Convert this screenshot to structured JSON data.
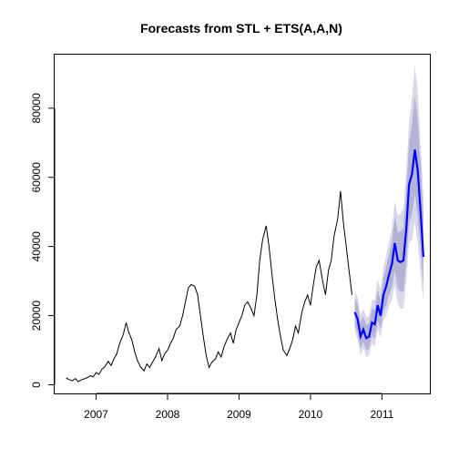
{
  "chart_data": {
    "type": "line",
    "title": "Forecasts from STL +  ETS(A,A,N)",
    "xlabel": "",
    "ylabel": "",
    "xlim": [
      2006.42,
      2011.67
    ],
    "ylim": [
      -2500,
      95500
    ],
    "x_ticks": [
      2007,
      2008,
      2009,
      2010,
      2011
    ],
    "x_tick_labels": [
      "2007",
      "2008",
      "2009",
      "2010",
      "2011"
    ],
    "y_ticks": [
      0,
      20000,
      40000,
      60000,
      80000
    ],
    "y_tick_labels": [
      "0",
      "20000",
      "40000",
      "60000",
      "80000"
    ],
    "grid": false,
    "legend": "none",
    "colors": {
      "history": "#000000",
      "forecast": "#0000ff",
      "band_95": "#d9d9ea",
      "band_80": "#b3b3d6"
    },
    "series": [
      {
        "role": "history",
        "x": [
          2006.58,
          2006.62,
          2006.67,
          2006.71,
          2006.75,
          2006.79,
          2006.83,
          2006.88,
          2006.92,
          2006.96,
          2007.0,
          2007.04,
          2007.08,
          2007.12,
          2007.17,
          2007.21,
          2007.25,
          2007.29,
          2007.33,
          2007.38,
          2007.42,
          2007.46,
          2007.5,
          2007.54,
          2007.58,
          2007.62,
          2007.67,
          2007.71,
          2007.75,
          2007.79,
          2007.83,
          2007.88,
          2007.92,
          2007.96,
          2008.0,
          2008.04,
          2008.08,
          2008.12,
          2008.17,
          2008.21,
          2008.25,
          2008.29,
          2008.33,
          2008.38,
          2008.42,
          2008.46,
          2008.5,
          2008.54,
          2008.58,
          2008.62,
          2008.67,
          2008.71,
          2008.75,
          2008.79,
          2008.83,
          2008.88,
          2008.92,
          2008.96,
          2009.0,
          2009.04,
          2009.08,
          2009.12,
          2009.17,
          2009.21,
          2009.25,
          2009.29,
          2009.33,
          2009.38,
          2009.42,
          2009.46,
          2009.5,
          2009.54,
          2009.58,
          2009.62,
          2009.67,
          2009.71,
          2009.75,
          2009.79,
          2009.83,
          2009.88,
          2009.92,
          2009.96,
          2010.0,
          2010.04,
          2010.08,
          2010.12,
          2010.17,
          2010.21,
          2010.25,
          2010.29,
          2010.33,
          2010.38,
          2010.42,
          2010.46,
          2010.5,
          2010.54,
          2010.58
        ],
        "y": [
          2000,
          1500,
          1200,
          1800,
          900,
          1400,
          1700,
          2100,
          2600,
          2300,
          3500,
          3000,
          4500,
          5200,
          6800,
          5600,
          7500,
          9000,
          12000,
          14500,
          18000,
          15000,
          13000,
          9500,
          7000,
          5200,
          4000,
          6000,
          5000,
          6500,
          8000,
          10500,
          7000,
          9000,
          10000,
          12000,
          13500,
          16000,
          17000,
          20000,
          24000,
          28000,
          29000,
          28500,
          26000,
          20000,
          14000,
          8500,
          5000,
          6500,
          7500,
          9500,
          8000,
          11000,
          13000,
          15000,
          12000,
          16000,
          18000,
          20000,
          23000,
          24000,
          22000,
          20000,
          26000,
          36000,
          42000,
          46000,
          40000,
          32000,
          25000,
          19000,
          14000,
          10000,
          8500,
          10500,
          13000,
          17000,
          15000,
          21000,
          24000,
          26000,
          23000,
          29000,
          34000,
          36000,
          30000,
          26000,
          33000,
          36000,
          43000,
          48000,
          56000,
          47000,
          40000,
          33000,
          26000
        ]
      },
      {
        "role": "forecast",
        "x": [
          2010.62,
          2010.66,
          2010.7,
          2010.74,
          2010.78,
          2010.82,
          2010.86,
          2010.9,
          2010.94,
          2010.98,
          2011.02,
          2011.06,
          2011.1,
          2011.14,
          2011.18,
          2011.22,
          2011.26,
          2011.3,
          2011.34,
          2011.38,
          2011.42,
          2011.46,
          2011.5,
          2011.54,
          2011.58
        ],
        "y": [
          21000,
          19000,
          14000,
          16000,
          13500,
          14000,
          18000,
          17500,
          23000,
          20000,
          26000,
          28500,
          32000,
          35000,
          41000,
          36000,
          35500,
          36000,
          45000,
          58000,
          61000,
          68000,
          62000,
          50000,
          37000
        ]
      }
    ],
    "band_95": {
      "lower": [
        15000,
        13000,
        8500,
        10500,
        8000,
        8500,
        12000,
        11000,
        16000,
        13500,
        18500,
        20000,
        23000,
        24500,
        29000,
        23500,
        22000,
        22000,
        30000,
        41000,
        42000,
        47000,
        41000,
        32000,
        24000
      ],
      "upper": [
        27000,
        25500,
        20000,
        22000,
        19500,
        20000,
        24500,
        24500,
        30500,
        27500,
        34000,
        37500,
        41500,
        45500,
        53000,
        49000,
        49500,
        51000,
        62000,
        76000,
        83000,
        92500,
        85000,
        70000,
        55000
      ]
    },
    "band_80": {
      "lower": [
        17000,
        15000,
        10500,
        12500,
        10000,
        10500,
        14200,
        13300,
        18500,
        16000,
        21200,
        23000,
        26200,
        28100,
        33200,
        28000,
        26800,
        27000,
        35400,
        47000,
        49200,
        55200,
        48800,
        38800,
        28800
      ],
      "upper": [
        25000,
        23200,
        17800,
        19800,
        17200,
        17700,
        21900,
        21800,
        27600,
        24500,
        30900,
        34200,
        37900,
        41600,
        48800,
        44200,
        44300,
        45400,
        56200,
        70000,
        75500,
        83500,
        77000,
        63200,
        49000
      ]
    }
  }
}
